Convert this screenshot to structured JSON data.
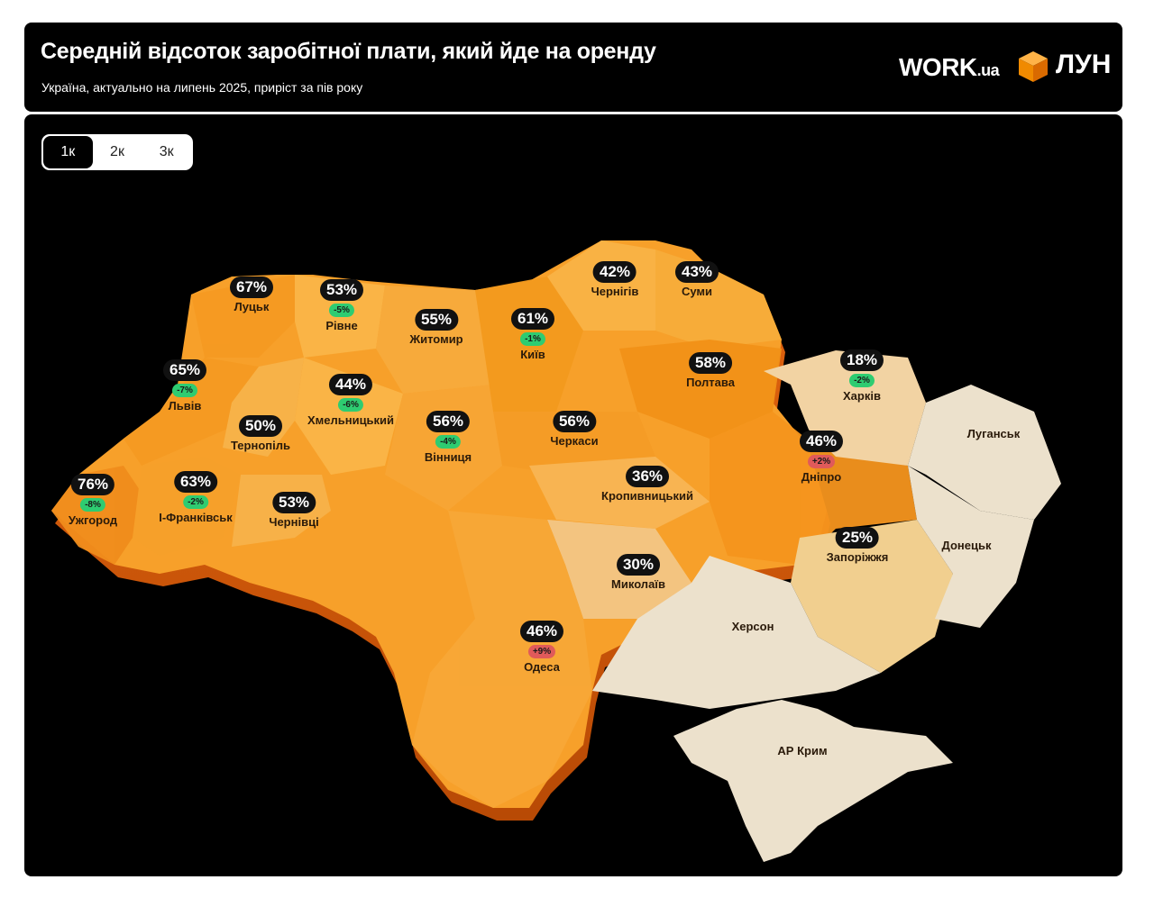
{
  "header": {
    "title": "Середній відсоток заробітної плати, який йде на оренду",
    "subtitle": "Україна, актуально на липень 2025, приріст за пів року",
    "logo_work": "WORK",
    "logo_work_suffix": ".ua",
    "logo_lun": "ЛУН"
  },
  "tabs": [
    {
      "label": "1к",
      "active": true
    },
    {
      "label": "2к",
      "active": false
    },
    {
      "label": "3к",
      "active": false
    }
  ],
  "colors": {
    "positive_change": "#e05a5a",
    "negative_change": "#2ecc71",
    "high": "#f39a1e",
    "mid": "#f8b548",
    "low": "#f1cf8f",
    "no_data": "#ece1cc"
  },
  "regions": [
    {
      "id": "uzhhorod",
      "city": "Ужгород",
      "percent": "76%",
      "change": "-8%"
    },
    {
      "id": "lutsk",
      "city": "Луцьк",
      "percent": "67%",
      "change": ""
    },
    {
      "id": "lviv",
      "city": "Львів",
      "percent": "65%",
      "change": "-7%"
    },
    {
      "id": "ivano-frankivsk",
      "city": "І-Франківськ",
      "percent": "63%",
      "change": "-2%"
    },
    {
      "id": "kyiv",
      "city": "Київ",
      "percent": "61%",
      "change": "-1%"
    },
    {
      "id": "poltava",
      "city": "Полтава",
      "percent": "58%",
      "change": ""
    },
    {
      "id": "vinnytsia",
      "city": "Вінниця",
      "percent": "56%",
      "change": "-4%"
    },
    {
      "id": "cherkasy",
      "city": "Черкаси",
      "percent": "56%",
      "change": ""
    },
    {
      "id": "zhytomyr",
      "city": "Житомир",
      "percent": "55%",
      "change": ""
    },
    {
      "id": "rivne",
      "city": "Рівне",
      "percent": "53%",
      "change": "-5%"
    },
    {
      "id": "chernivtsi",
      "city": "Чернівці",
      "percent": "53%",
      "change": ""
    },
    {
      "id": "ternopil",
      "city": "Тернопіль",
      "percent": "50%",
      "change": ""
    },
    {
      "id": "dnipro",
      "city": "Дніпро",
      "percent": "46%",
      "change": "+2%"
    },
    {
      "id": "odesa",
      "city": "Одеса",
      "percent": "46%",
      "change": "+9%"
    },
    {
      "id": "khmelnytskyi",
      "city": "Хмельницький",
      "percent": "44%",
      "change": "-6%"
    },
    {
      "id": "sumy",
      "city": "Суми",
      "percent": "43%",
      "change": ""
    },
    {
      "id": "chernihiv",
      "city": "Чернігів",
      "percent": "42%",
      "change": ""
    },
    {
      "id": "kropyvnytskyi",
      "city": "Кропивницький",
      "percent": "36%",
      "change": ""
    },
    {
      "id": "mykolaiv",
      "city": "Миколаїв",
      "percent": "30%",
      "change": ""
    },
    {
      "id": "zaporizhzhia",
      "city": "Запоріжжя",
      "percent": "25%",
      "change": ""
    },
    {
      "id": "kharkiv",
      "city": "Харків",
      "percent": "18%",
      "change": "-2%"
    }
  ],
  "no_data_regions": [
    {
      "id": "luhansk",
      "city": "Луганськ"
    },
    {
      "id": "donetsk",
      "city": "Донецьк"
    },
    {
      "id": "kherson",
      "city": "Херсон"
    },
    {
      "id": "crimea",
      "city": "АР Крим"
    }
  ]
}
